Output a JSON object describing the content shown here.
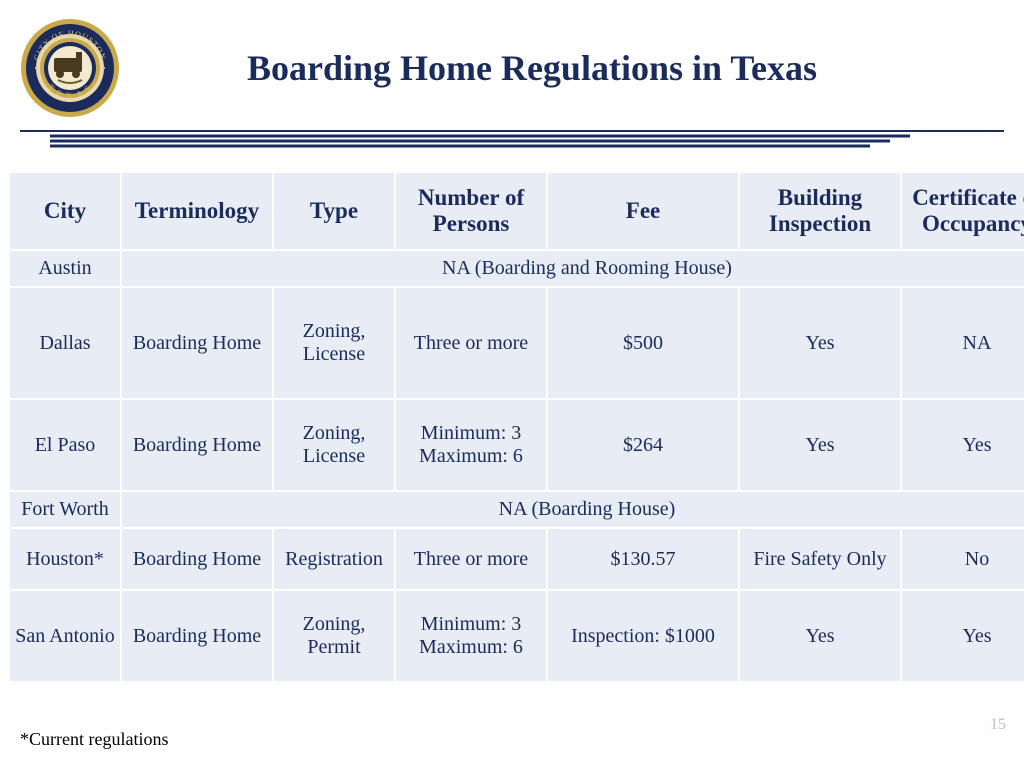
{
  "title": "Boarding Home Regulations in Texas",
  "seal_label": "City of Houston Texas",
  "columns": [
    "City",
    "Terminology",
    "Type",
    "Number of Persons",
    "Fee",
    "Building Inspection",
    "Certificate of Occupancy"
  ],
  "rows": {
    "austin": {
      "city": "Austin",
      "merged": "NA (Boarding and Rooming House)"
    },
    "dallas": {
      "city": "Dallas",
      "term": "Boarding Home",
      "type": "Zoning, License",
      "num": "Three or more",
      "fee": "$500",
      "insp": "Yes",
      "cert": "NA"
    },
    "elpaso": {
      "city": "El Paso",
      "term": "Boarding Home",
      "type": "Zoning, License",
      "num": "Minimum: 3\nMaximum: 6",
      "fee": "$264",
      "insp": "Yes",
      "cert": "Yes"
    },
    "fortworth": {
      "city": "Fort Worth",
      "merged": "NA (Boarding House)"
    },
    "houston": {
      "city": "Houston*",
      "term": "Boarding Home",
      "type": "Registration",
      "num": "Three or more",
      "fee": "$130.57",
      "insp": "Fire Safety Only",
      "cert": "No"
    },
    "sanantonio": {
      "city": "San Antonio",
      "term": "Boarding Home",
      "type": "Zoning, Permit",
      "num": "Minimum: 3\nMaximum: 6",
      "fee": "Inspection: $1000",
      "insp": "Yes",
      "cert": "Yes"
    }
  },
  "footnote": "*Current regulations",
  "page_number": "15",
  "colors": {
    "text": "#1a2b5c",
    "cell_bg": "#e8ecf4",
    "seal_gold": "#c9a94a",
    "seal_navy": "#1a2b5c",
    "divider": "#1a2b5c"
  }
}
